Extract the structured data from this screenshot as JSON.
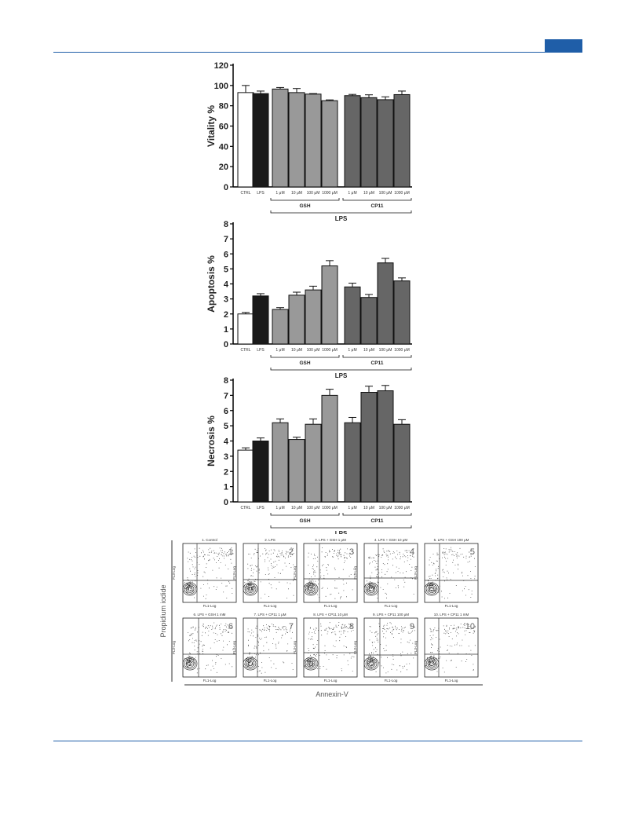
{
  "colors": {
    "header_rule": "#1f5ea8",
    "ctrl": "#ffffff",
    "lps": "#1a1a1a",
    "gsh": "#999999",
    "cp11": "#666666"
  },
  "chart_data": [
    {
      "type": "bar",
      "ylabel": "Vitality %",
      "ylim": [
        0,
        120
      ],
      "yticks": [
        0,
        20,
        40,
        60,
        80,
        100,
        120
      ],
      "categories": [
        "CTRL",
        "LPS",
        "1 μM",
        "10 μM",
        "100 μM",
        "1000 μM",
        "1 μM",
        "10 μM",
        "100 μM",
        "1000 μM"
      ],
      "values": [
        93,
        92,
        96.5,
        93,
        91.5,
        85,
        90,
        88,
        86,
        91
      ],
      "errors": [
        7,
        2.5,
        1.5,
        4,
        0.5,
        0.8,
        1.2,
        2.8,
        2.8,
        3.5
      ],
      "groups": [
        {
          "label": "GSH",
          "from": 2,
          "to": 5
        },
        {
          "label": "CP11",
          "from": 6,
          "to": 9
        }
      ],
      "outer_group": "LPS"
    },
    {
      "type": "bar",
      "ylabel": "Apoptosis %",
      "ylim": [
        0,
        8
      ],
      "yticks": [
        0,
        1,
        2,
        3,
        4,
        5,
        6,
        7,
        8
      ],
      "categories": [
        "CTRL",
        "LPS",
        "1 μM",
        "10 μM",
        "100 μM",
        "1000 μM",
        "1 μM",
        "10 μM",
        "100 μM",
        "1000 μM"
      ],
      "values": [
        2.0,
        3.2,
        2.3,
        3.25,
        3.6,
        5.2,
        3.8,
        3.1,
        5.4,
        4.2
      ],
      "errors": [
        0.1,
        0.15,
        0.12,
        0.2,
        0.25,
        0.35,
        0.25,
        0.2,
        0.3,
        0.2
      ],
      "groups": [
        {
          "label": "GSH",
          "from": 2,
          "to": 5
        },
        {
          "label": "CP11",
          "from": 6,
          "to": 9
        }
      ],
      "outer_group": "LPS"
    },
    {
      "type": "bar",
      "ylabel": "Necrosis %",
      "ylim": [
        0,
        8
      ],
      "yticks": [
        0,
        1,
        2,
        3,
        4,
        5,
        6,
        7,
        8
      ],
      "categories": [
        "CTRL",
        "LPS",
        "1 μM",
        "10 μM",
        "100 μM",
        "1000 μM",
        "1 μM",
        "10 μM",
        "100 μM",
        "1000 μM"
      ],
      "values": [
        3.4,
        4.0,
        5.2,
        4.1,
        5.1,
        7.0,
        5.2,
        7.2,
        7.3,
        5.1
      ],
      "errors": [
        0.15,
        0.2,
        0.25,
        0.15,
        0.35,
        0.4,
        0.35,
        0.4,
        0.35,
        0.3
      ],
      "groups": [
        {
          "label": "GSH",
          "from": 2,
          "to": 5
        },
        {
          "label": "CP11",
          "from": 6,
          "to": 9
        }
      ],
      "outer_group": "LPS"
    }
  ],
  "flow": {
    "ylabel": "Propidium iodide",
    "xlabel": "Annexin-V",
    "axis_x": "FL1-Log",
    "axis_y": "FL3-Log",
    "panels": [
      {
        "title": "1. Control",
        "num": "1"
      },
      {
        "title": "2. LPS",
        "num": "2"
      },
      {
        "title": "3. LPS + GSH 1 μM",
        "num": "3"
      },
      {
        "title": "4. LPS + GSH 10 μM",
        "num": "4"
      },
      {
        "title": "5. LPS + GSH 100 μM",
        "num": "5"
      },
      {
        "title": "6. LPS + GSH 1 mM",
        "num": "6"
      },
      {
        "title": "7. LPS + CP11 1 μM",
        "num": "7"
      },
      {
        "title": "8. LPS + CP11 10 μM",
        "num": "8"
      },
      {
        "title": "9. LPS + CP11 100 μM",
        "num": "9"
      },
      {
        "title": "10. LPS + CP11 1 mM",
        "num": "10"
      }
    ]
  }
}
